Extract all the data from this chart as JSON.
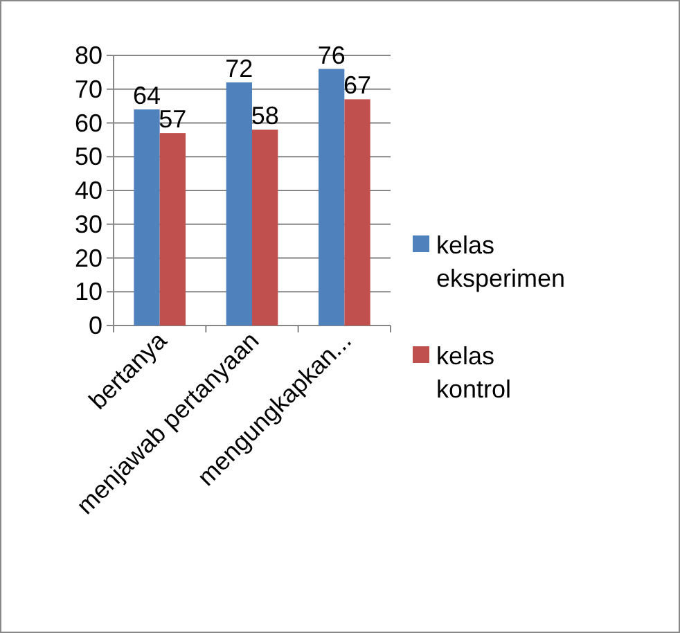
{
  "chart_data": {
    "type": "bar",
    "categories": [
      "bertanya",
      "menjawab pertanyaan",
      "mengungkapkan..."
    ],
    "series": [
      {
        "name": "kelas eksperimen",
        "color": "#4f81bd",
        "values": [
          64,
          72,
          76
        ]
      },
      {
        "name": "kelas kontrol",
        "color": "#c0504d",
        "values": [
          57,
          58,
          67
        ]
      }
    ],
    "ylim": [
      0,
      80
    ],
    "yticks": [
      0,
      10,
      20,
      30,
      40,
      50,
      60,
      70,
      80
    ],
    "grid": "y",
    "legend": "right",
    "data_labels": true
  }
}
